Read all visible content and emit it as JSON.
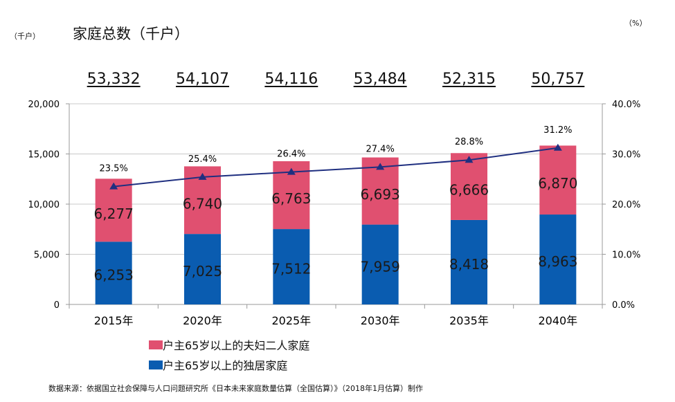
{
  "header": {
    "left_unit": "（千户）",
    "title": "家庭总数（千户）",
    "right_unit": "（%）"
  },
  "totals": [
    "53,332",
    "54,107",
    "54,116",
    "53,484",
    "52,315",
    "50,757"
  ],
  "legend": {
    "couple": "户主65岁以上的夫妇二人家庭",
    "single": "户主65岁以上的独居家庭"
  },
  "source": "数据来源：依据国立社会保障与人口问题研究所《日本未来家庭数量估算（全国估算）》（2018年1月估算）制作",
  "colors": {
    "couple": "#e05070",
    "single": "#0a5cb0",
    "line": "#1f2f80",
    "grid": "#c8c8c8"
  },
  "chart_data": {
    "type": "bar",
    "stacked": true,
    "categories": [
      "2015年",
      "2020年",
      "2025年",
      "2030年",
      "2035年",
      "2040年"
    ],
    "series": [
      {
        "name": "户主65岁以上的独居家庭",
        "values": [
          6253,
          7025,
          7512,
          7959,
          8418,
          8963
        ],
        "labels": [
          "6,253",
          "7,025",
          "7,512",
          "7,959",
          "8,418",
          "8,963"
        ]
      },
      {
        "name": "户主65岁以上的夫妇二人家庭",
        "values": [
          6277,
          6740,
          6763,
          6693,
          6666,
          6870
        ],
        "labels": [
          "6,277",
          "6,740",
          "6,763",
          "6,693",
          "6,666",
          "6,870"
        ]
      }
    ],
    "line": {
      "name": "ratio",
      "values": [
        23.5,
        25.4,
        26.4,
        27.4,
        28.8,
        31.2
      ],
      "labels": [
        "23.5%",
        "25.4%",
        "26.4%",
        "27.4%",
        "28.8%",
        "31.2%"
      ]
    },
    "ylim": [
      0,
      20000
    ],
    "yticks": [
      "0",
      "5,000",
      "10,000",
      "15,000",
      "20,000"
    ],
    "y2lim": [
      0,
      40
    ],
    "y2ticks": [
      "0.0%",
      "10.0%",
      "20.0%",
      "30.0%",
      "40.0%"
    ]
  }
}
